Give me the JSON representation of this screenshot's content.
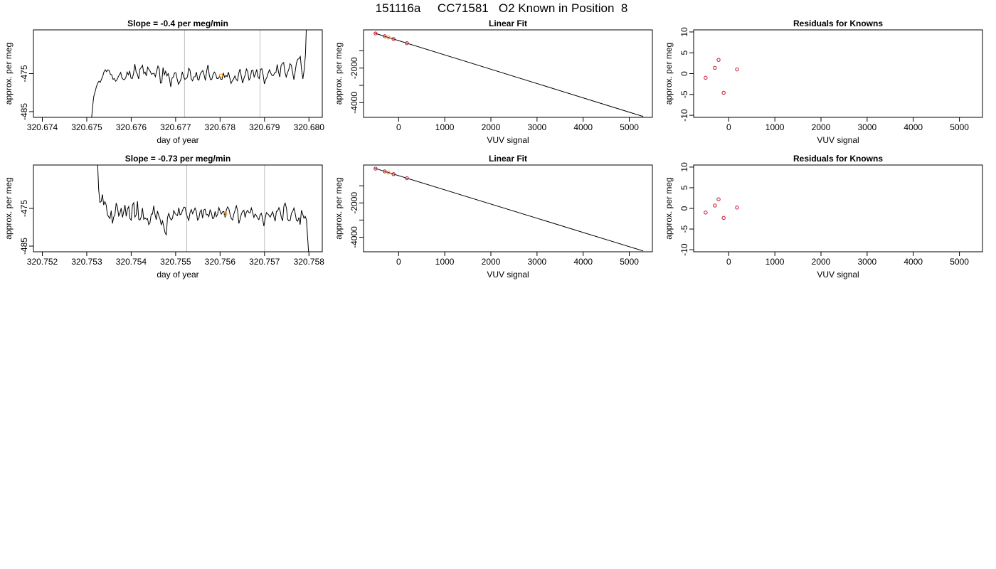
{
  "figure": {
    "title": "151116a     CC71581   O2 Known in Position  8"
  },
  "chart_data": [
    {
      "type": "line",
      "title": "Slope =  -0.4  per meg/min",
      "xlabel": "day of year",
      "ylabel": "approx. per meg",
      "xlim": [
        320.6738,
        320.6803
      ],
      "ylim": [
        -486.5,
        -463.5
      ],
      "x_ticks": [
        320.674,
        320.675,
        320.676,
        320.677,
        320.678,
        320.679,
        320.68
      ],
      "x_tick_labels": [
        "320.674",
        "320.675",
        "320.676",
        "320.677",
        "320.678",
        "320.679",
        "320.680"
      ],
      "y_ticks": [
        -485,
        -475
      ],
      "y_tick_labels": [
        "-485",
        "-475"
      ],
      "vlines": [
        320.6772,
        320.6789
      ],
      "series": [
        {
          "x_start": 320.6751,
          "x_end": 320.67995,
          "values": [
            -488,
            -484,
            -481,
            -479.8,
            -478.5,
            -477.5,
            -477,
            -477.3,
            -476.5,
            -475.7,
            -474.5,
            -474,
            -474.5,
            -474,
            -474.2,
            -475.2,
            -475.3,
            -476.5,
            -476.3,
            -477,
            -476.7,
            -475.9,
            -475.3,
            -474.7,
            -476.2,
            -476.5,
            -476.6,
            -476,
            -474.6,
            -475.3,
            -474.3,
            -476.2,
            -476.3,
            -475,
            -472.5,
            -474.5,
            -475.2,
            -476.4,
            -473.8,
            -473.4,
            -472.8,
            -475,
            -474.6,
            -475.6,
            -473.3,
            -473.9,
            -474.4,
            -475.2,
            -475,
            -474.9,
            -475.8,
            -474.4,
            -473,
            -473.7,
            -477.5,
            -477.4,
            -473.4,
            -475.3,
            -474.4,
            -475.6,
            -475,
            -476.3,
            -478.5,
            -476.2,
            -475.9,
            -474.8,
            -474.8,
            -476.4,
            -477.8,
            -477.2,
            -476.4,
            -474.5,
            -475.8,
            -476.5,
            -476.3,
            -475.9,
            -473.6,
            -474.1,
            -476.4,
            -476.9,
            -475.9,
            -475.8,
            -474.6,
            -476.5,
            -476.7,
            -475.1,
            -474.6,
            -474.2,
            -475.4,
            -476.8,
            -474.3,
            -472.7,
            -475.3,
            -476.6,
            -476.5,
            -475.2,
            -474.6,
            -475.1,
            -476.3,
            -476.3,
            -475.7,
            -476.5,
            -476.5,
            -474.8,
            -476,
            -475.5,
            -475.8,
            -474.6,
            -476.1,
            -477.6,
            -476.9,
            -476.4,
            -475.6,
            -476.5,
            -476.9,
            -474.9,
            -473.8,
            -475.7,
            -477.5,
            -476.3,
            -475.4,
            -473.8,
            -474.5,
            -476.7,
            -476.2,
            -474.2,
            -474.1,
            -475.9,
            -475.1,
            -473.9,
            -475.9,
            -476.3,
            -473.9,
            -473.7,
            -475.3,
            -477.7,
            -476.6,
            -475.9,
            -474.8,
            -474,
            -474.9,
            -475.5,
            -475.5,
            -474.8,
            -474.7,
            -472.6,
            -474.6,
            -475.9,
            -472.9,
            -472.3,
            -472.1,
            -474.6,
            -475.9,
            -474.8,
            -473.9,
            -472.4,
            -472.8,
            -474.7,
            -476.6,
            -474.4,
            -472.2,
            -471.2,
            -471.1,
            -470.5,
            -474,
            -476.4,
            -474,
            -470.1,
            -460
          ]
        }
      ],
      "points": [
        {
          "x": 320.67802,
          "y": -475.5,
          "color": "#ff8c00"
        }
      ]
    },
    {
      "type": "scatter",
      "title": "Linear Fit",
      "xlabel": "VUV signal",
      "ylabel": "approx. per meg",
      "xlim": [
        -760,
        5500
      ],
      "ylim": [
        -4850,
        210
      ],
      "x_ticks": [
        0,
        1000,
        2000,
        3000,
        4000,
        5000
      ],
      "x_tick_labels": [
        "0",
        "1000",
        "2000",
        "3000",
        "4000",
        "5000"
      ],
      "y_ticks": [
        -4000,
        -3000,
        -2000,
        -1000
      ],
      "y_tick_labels": [
        "-4000",
        "",
        "-2000",
        ""
      ],
      "fit_line": [
        [
          -520,
          20
        ],
        [
          5300,
          -4800
        ]
      ],
      "points": [
        {
          "x": -500,
          "y": 0,
          "color": "#c8142f"
        },
        {
          "x": -300,
          "y": -160,
          "color": "#c8142f"
        },
        {
          "x": -220,
          "y": -230,
          "color": "#ff8c00"
        },
        {
          "x": -110,
          "y": -320,
          "color": "#c8142f"
        },
        {
          "x": 180,
          "y": -560,
          "color": "#c8142f"
        }
      ]
    },
    {
      "type": "scatter",
      "title": "Residuals for Knowns",
      "xlabel": "VUV signal",
      "ylabel": "approx. per meg",
      "xlim": [
        -760,
        5500
      ],
      "ylim": [
        -10.5,
        10.5
      ],
      "x_ticks": [
        0,
        1000,
        2000,
        3000,
        4000,
        5000
      ],
      "x_tick_labels": [
        "0",
        "1000",
        "2000",
        "3000",
        "4000",
        "5000"
      ],
      "y_ticks": [
        -10,
        -5,
        0,
        5,
        10
      ],
      "y_tick_labels": [
        "-10",
        "-5",
        "0",
        "5",
        "10"
      ],
      "points": [
        {
          "x": -500,
          "y": -1,
          "color": "#c8142f"
        },
        {
          "x": -300,
          "y": 1.4,
          "color": "#c8142f"
        },
        {
          "x": -220,
          "y": 3.3,
          "color": "#c8142f"
        },
        {
          "x": -110,
          "y": -4.6,
          "color": "#c8142f"
        },
        {
          "x": 180,
          "y": 1,
          "color": "#c8142f"
        }
      ]
    },
    {
      "type": "line",
      "title": "Slope =  -0.73  per meg/min",
      "xlabel": "day of year",
      "ylabel": "approx. per meg",
      "xlim": [
        320.7518,
        320.7583
      ],
      "ylim": [
        -486.5,
        -463.5
      ],
      "x_ticks": [
        320.752,
        320.753,
        320.754,
        320.755,
        320.756,
        320.757,
        320.758
      ],
      "x_tick_labels": [
        "320.752",
        "320.753",
        "320.754",
        "320.755",
        "320.756",
        "320.757",
        "320.758"
      ],
      "y_ticks": [
        -485,
        -475
      ],
      "y_tick_labels": [
        "-485",
        "-475"
      ],
      "vlines": [
        320.75525,
        320.757
      ],
      "series": [
        {
          "x_start": 320.75324,
          "x_end": 320.758,
          "values": [
            -462,
            -470,
            -473.4,
            -473.2,
            -471.3,
            -474.1,
            -473.2,
            -474.1,
            -476.7,
            -477.2,
            -477.7,
            -475.6,
            -479,
            -477.3,
            -476.6,
            -473.6,
            -474.7,
            -477,
            -476.3,
            -474.9,
            -477.4,
            -475.9,
            -474.1,
            -477.1,
            -475.2,
            -474.5,
            -477.7,
            -478.1,
            -474.1,
            -473.5,
            -477.3,
            -476.7,
            -473.1,
            -477.9,
            -478.1,
            -477.2,
            -474.9,
            -477.9,
            -477.5,
            -477.9,
            -477.7,
            -479.3,
            -478.8,
            -476.5,
            -476.5,
            -474.3,
            -476.6,
            -478,
            -475.7,
            -476.9,
            -477.8,
            -479.4,
            -478.3,
            -479.8,
            -481.4,
            -482,
            -477.4,
            -476.3,
            -477.5,
            -478.1,
            -477.6,
            -475.6,
            -476.3,
            -476.7,
            -476.9,
            -474.8,
            -476.7,
            -476.5,
            -475.5,
            -474.7,
            -474.7,
            -476.4,
            -477.4,
            -478.2,
            -476.1,
            -475.3,
            -476.4,
            -475.7,
            -474.9,
            -475.8,
            -478.1,
            -477.7,
            -475.9,
            -475.4,
            -477.6,
            -475.4,
            -475.2,
            -476.7,
            -476.6,
            -477.2,
            -475.4,
            -476.1,
            -477.7,
            -477.6,
            -475.8,
            -477.2,
            -476.6,
            -474.8,
            -475.7,
            -476.5,
            -475.9,
            -475.8,
            -477.4,
            -475.4,
            -474.6,
            -475.1,
            -476.6,
            -477.7,
            -478.1,
            -476.5,
            -475.5,
            -474.3,
            -475.6,
            -479,
            -477.9,
            -476.5,
            -475.8,
            -475.5,
            -477.4,
            -476,
            -475.5,
            -476.1,
            -476.2,
            -474.9,
            -476.1,
            -477.4,
            -476.5,
            -476.9,
            -477.6,
            -478,
            -476.7,
            -476.3,
            -477.8,
            -479.7,
            -477.8,
            -476.1,
            -476.4,
            -476.8,
            -477.3,
            -476.6,
            -475.9,
            -477.2,
            -478.4,
            -475.8,
            -475.7,
            -474.8,
            -475.7,
            -477.5,
            -478.3,
            -474.3,
            -473.6,
            -474.9,
            -477.9,
            -478.3,
            -478.2,
            -476.3,
            -475.8,
            -474.9,
            -476.3,
            -478.2,
            -478.4,
            -477.4,
            -479.3,
            -475.5,
            -476.5,
            -477.6,
            -477.1,
            -478,
            -483,
            -488
          ]
        }
      ],
      "points": [
        {
          "x": 320.75612,
          "y": -476.5,
          "color": "#ff8c00"
        }
      ]
    },
    {
      "type": "scatter",
      "title": "Linear Fit",
      "xlabel": "VUV signal",
      "ylabel": "approx. per meg",
      "xlim": [
        -760,
        5500
      ],
      "ylim": [
        -4850,
        210
      ],
      "x_ticks": [
        0,
        1000,
        2000,
        3000,
        4000,
        5000
      ],
      "x_tick_labels": [
        "0",
        "1000",
        "2000",
        "3000",
        "4000",
        "5000"
      ],
      "y_ticks": [
        -4000,
        -3000,
        -2000,
        -1000
      ],
      "y_tick_labels": [
        "-4000",
        "",
        "-2000",
        ""
      ],
      "fit_line": [
        [
          -520,
          20
        ],
        [
          5300,
          -4800
        ]
      ],
      "points": [
        {
          "x": -500,
          "y": 0,
          "color": "#c8142f"
        },
        {
          "x": -300,
          "y": -160,
          "color": "#c8142f"
        },
        {
          "x": -220,
          "y": -230,
          "color": "#ff8c00"
        },
        {
          "x": -110,
          "y": -320,
          "color": "#c8142f"
        },
        {
          "x": 180,
          "y": -560,
          "color": "#c8142f"
        }
      ]
    },
    {
      "type": "scatter",
      "title": "Residuals for Knowns",
      "xlabel": "VUV signal",
      "ylabel": "approx. per meg",
      "xlim": [
        -760,
        5500
      ],
      "ylim": [
        -10.5,
        10.5
      ],
      "x_ticks": [
        0,
        1000,
        2000,
        3000,
        4000,
        5000
      ],
      "x_tick_labels": [
        "0",
        "1000",
        "2000",
        "3000",
        "4000",
        "5000"
      ],
      "y_ticks": [
        -10,
        -5,
        0,
        5,
        10
      ],
      "y_tick_labels": [
        "-10",
        "-5",
        "0",
        "5",
        "10"
      ],
      "points": [
        {
          "x": -500,
          "y": -1,
          "color": "#c8142f"
        },
        {
          "x": -300,
          "y": 0.7,
          "color": "#c8142f"
        },
        {
          "x": -220,
          "y": 2.2,
          "color": "#c8142f"
        },
        {
          "x": -110,
          "y": -2.3,
          "color": "#c8142f"
        },
        {
          "x": 180,
          "y": 0.2,
          "color": "#c8142f"
        }
      ]
    }
  ]
}
